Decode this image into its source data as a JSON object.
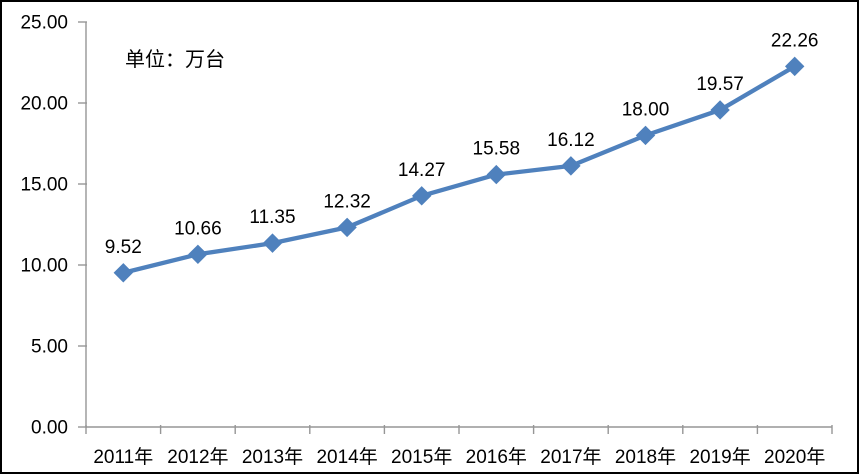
{
  "chart_data": {
    "type": "line",
    "title": "",
    "unit_label": "单位：万台",
    "categories": [
      "2011年",
      "2012年",
      "2013年",
      "2014年",
      "2015年",
      "2016年",
      "2017年",
      "2018年",
      "2019年",
      "2020年"
    ],
    "values": [
      9.52,
      10.66,
      11.35,
      12.32,
      14.27,
      15.58,
      16.12,
      18.0,
      19.57,
      22.26
    ],
    "data_labels": [
      "9.52",
      "10.66",
      "11.35",
      "12.32",
      "14.27",
      "15.58",
      "16.12",
      "18.00",
      "19.57",
      "22.26"
    ],
    "xlabel": "",
    "ylabel": "",
    "ylim": [
      0,
      25
    ],
    "y_tick_values": [
      0,
      5,
      10,
      15,
      20,
      25
    ],
    "y_tick_labels": [
      "0.00",
      "5.00",
      "10.00",
      "15.00",
      "20.00",
      "25.00"
    ],
    "grid": false,
    "legend": "none",
    "marker": "diamond",
    "line_color": "#4F81BD",
    "axis_color": "#969696",
    "text_color": "#000000",
    "background_color": "#FFFFFF",
    "border_color": "#000000"
  }
}
